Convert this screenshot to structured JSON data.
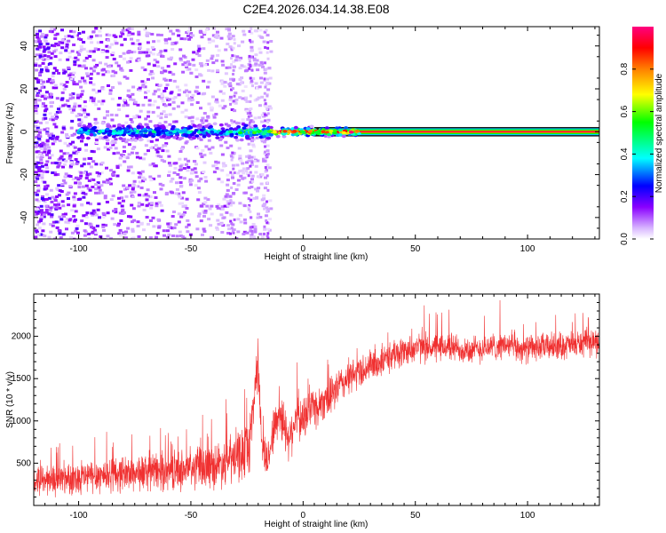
{
  "figure_title": "C2E4.2026.034.14.38.E08",
  "chart_data": [
    {
      "type": "heatmap",
      "title": "C2E4.2026.034.14.38.E08",
      "xlabel": "Height of straight line (km)",
      "ylabel": "Frequency (Hz)",
      "xlim": [
        -120,
        132
      ],
      "ylim": [
        -50,
        49
      ],
      "x_ticks": [
        -100,
        -50,
        0,
        50,
        100
      ],
      "x_tick_labels": [
        "-100",
        "-50",
        "0",
        "50",
        "100"
      ],
      "y_ticks": [
        -40,
        -20,
        0,
        20,
        40
      ],
      "y_tick_labels": [
        "-40",
        "-20",
        "0",
        "20",
        "40"
      ],
      "colorbar": {
        "label": "Normalized spectral amplitude",
        "range": [
          0,
          1
        ],
        "ticks": [
          0.0,
          0.2,
          0.4,
          0.6,
          0.8
        ],
        "tick_labels": [
          "0.0",
          "0.2",
          "0.4",
          "0.6",
          "0.8"
        ],
        "colors": [
          "#ffffff",
          "#c9a0ff",
          "#7a00ff",
          "#0000ff",
          "#00ffff",
          "#00ff00",
          "#ffff00",
          "#ff7f00",
          "#ff0000",
          "#ff0080"
        ]
      },
      "ridge": {
        "frequency_hz": 0,
        "from_km": -100,
        "to_km": 132,
        "description_levels": [
          {
            "from_km": -100,
            "to_km": -30,
            "amplitude": 0.4
          },
          {
            "from_km": -30,
            "to_km": -15,
            "amplitude": 0.55
          },
          {
            "from_km": -15,
            "to_km": 15,
            "amplitude": 0.85
          },
          {
            "from_km": 15,
            "to_km": 132,
            "amplitude": 0.95
          }
        ]
      },
      "noise_region_km": [
        -120,
        -15
      ],
      "bright_columns_km": [
        -32,
        -24,
        -17
      ]
    },
    {
      "type": "line",
      "xlabel": "Height of straight line (km)",
      "ylabel": "SNR (10 * v/v)",
      "xlim": [
        -120,
        132
      ],
      "ylim": [
        0,
        2500
      ],
      "x_ticks": [
        -100,
        -50,
        0,
        50,
        100
      ],
      "x_tick_labels": [
        "-100",
        "-50",
        "0",
        "50",
        "100"
      ],
      "y_ticks": [
        500,
        1000,
        1500,
        2000
      ],
      "y_tick_labels": [
        "500",
        "1000",
        "1500",
        "2000"
      ],
      "series": [
        {
          "name": "SNR",
          "color": "#f03030",
          "x": [
            -120,
            -110,
            -100,
            -90,
            -80,
            -70,
            -60,
            -50,
            -40,
            -35,
            -30,
            -27,
            -24,
            -21,
            -20,
            -19,
            -18,
            -16,
            -14,
            -12,
            -10,
            -8,
            -6,
            -4,
            -2,
            0,
            2,
            4,
            6,
            8,
            10,
            12,
            15,
            20,
            25,
            30,
            35,
            40,
            45,
            50,
            55,
            60,
            65,
            70,
            75,
            80,
            85,
            90,
            95,
            100,
            105,
            110,
            115,
            120,
            125,
            132
          ],
          "values": [
            300,
            310,
            330,
            360,
            380,
            390,
            410,
            430,
            470,
            520,
            560,
            620,
            700,
            1500,
            1700,
            1000,
            700,
            500,
            800,
            1000,
            1100,
            900,
            800,
            1000,
            1050,
            1000,
            1100,
            1200,
            1150,
            1200,
            1300,
            1250,
            1400,
            1500,
            1580,
            1650,
            1700,
            1780,
            1820,
            1870,
            1870,
            1860,
            1880,
            1850,
            1830,
            1860,
            1880,
            1900,
            1860,
            1850,
            1870,
            1880,
            1890,
            1900,
            1920,
            1930
          ],
          "spread": [
            230,
            230,
            240,
            260,
            260,
            270,
            280,
            300,
            320,
            350,
            380,
            400,
            420,
            400,
            380,
            350,
            330,
            300,
            320,
            350,
            360,
            350,
            340,
            350,
            350,
            330,
            320,
            320,
            310,
            300,
            290,
            280,
            270,
            260,
            250,
            240,
            230,
            220,
            220,
            220,
            220,
            210,
            210,
            210,
            210,
            210,
            200,
            200,
            200,
            200,
            200,
            200,
            200,
            200,
            200,
            200
          ]
        }
      ]
    }
  ]
}
